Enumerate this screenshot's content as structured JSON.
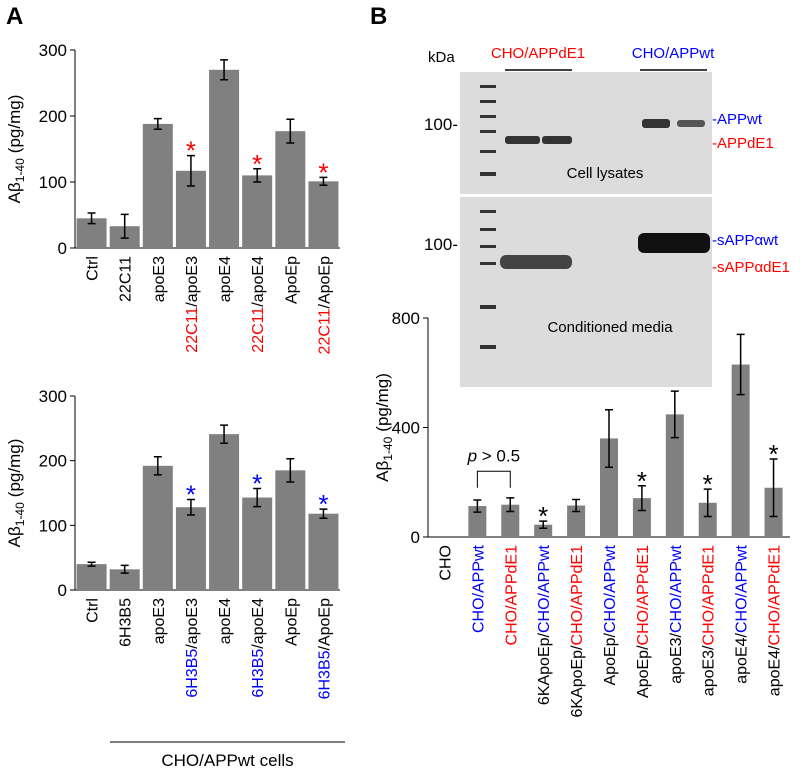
{
  "panel_labels": [
    "A",
    "B"
  ],
  "blot": {
    "unit": "kDa",
    "groups": [
      {
        "text": "CHO/APPdE1",
        "color": "#ff0000"
      },
      {
        "text": "CHO/APPwt",
        "color": "#0000ff"
      }
    ],
    "markers": [
      "100-",
      "100-"
    ],
    "panels": [
      "Cell lysates",
      "Conditioned media"
    ],
    "band_labels": [
      {
        "text": "-APPwt",
        "color": "#0000ff"
      },
      {
        "text": "-APPdE1",
        "color": "#ff0000"
      },
      {
        "text": "-sAPPαwt",
        "color": "#0000ff"
      },
      {
        "text": "-sAPPαdE1",
        "color": "#ff0000"
      }
    ]
  },
  "chart_data": [
    {
      "type": "bar",
      "y_label": {
        "main": "Aβ",
        "sub": "1-40",
        "unit": "(pg/mg)"
      },
      "color": "#808080",
      "categories": [
        [
          {
            "text": "Ctrl",
            "color": "#000000"
          }
        ],
        [
          {
            "text": "22C11",
            "color": "#000000"
          }
        ],
        [
          {
            "text": "apoE3",
            "color": "#000000"
          }
        ],
        [
          {
            "text": "22C11",
            "color": "#ff0000"
          },
          {
            "text": "/apoE3",
            "color": "#000000"
          }
        ],
        [
          {
            "text": "apoE4",
            "color": "#000000"
          }
        ],
        [
          {
            "text": "22C11",
            "color": "#ff0000"
          },
          {
            "text": "/apoE4",
            "color": "#000000"
          }
        ],
        [
          {
            "text": "ApoEp",
            "color": "#000000"
          }
        ],
        [
          {
            "text": "22C11",
            "color": "#ff0000"
          },
          {
            "text": "/ApoEp",
            "color": "#000000"
          }
        ]
      ],
      "values": [
        45,
        33,
        188,
        117,
        270,
        110,
        177,
        101
      ],
      "errors": [
        8,
        18,
        8,
        23,
        15,
        10,
        18,
        6
      ],
      "markers": [
        null,
        null,
        null,
        "*",
        null,
        "*",
        null,
        "*"
      ],
      "marker_color": "#ff0000",
      "ylim": [
        0,
        300
      ],
      "yticks": [
        0,
        100,
        200,
        300
      ]
    },
    {
      "type": "bar",
      "y_label": {
        "main": "Aβ",
        "sub": "1-40",
        "unit": "(pg/mg)"
      },
      "color": "#808080",
      "categories": [
        [
          {
            "text": "Ctrl",
            "color": "#000000"
          }
        ],
        [
          {
            "text": "6H3B5",
            "color": "#000000"
          }
        ],
        [
          {
            "text": "apoE3",
            "color": "#000000"
          }
        ],
        [
          {
            "text": "6H3B5",
            "color": "#0000ff"
          },
          {
            "text": "/apoE3",
            "color": "#000000"
          }
        ],
        [
          {
            "text": "apoE4",
            "color": "#000000"
          }
        ],
        [
          {
            "text": "6H3B5",
            "color": "#0000ff"
          },
          {
            "text": "/apoE4",
            "color": "#000000"
          }
        ],
        [
          {
            "text": "ApoEp",
            "color": "#000000"
          }
        ],
        [
          {
            "text": "6H3B5",
            "color": "#0000ff"
          },
          {
            "text": "/ApoEp",
            "color": "#000000"
          }
        ]
      ],
      "values": [
        40,
        32,
        192,
        128,
        241,
        143,
        185,
        118
      ],
      "errors": [
        3,
        6,
        14,
        12,
        14,
        14,
        18,
        7
      ],
      "markers": [
        null,
        null,
        null,
        "*",
        null,
        "*",
        null,
        "*"
      ],
      "marker_color": "#0000ff",
      "ylim": [
        0,
        300
      ],
      "yticks": [
        0,
        100,
        200,
        300
      ],
      "group_label": "CHO/APPwt cells"
    },
    {
      "type": "bar",
      "y_label": {
        "main": "Aβ",
        "sub": "1-40",
        "unit": "(pg/mg)"
      },
      "color": "#808080",
      "categories": [
        [
          {
            "text": "CHO",
            "color": "#000000"
          }
        ],
        [
          {
            "text": "CHO/APPwt",
            "color": "#0000ff"
          }
        ],
        [
          {
            "text": "CHO/APPdE1",
            "color": "#ff0000"
          }
        ],
        [
          {
            "text": "6KApoEp/",
            "color": "#000000"
          },
          {
            "text": "CHO/APPwt",
            "color": "#0000ff"
          }
        ],
        [
          {
            "text": "6KApoEp/",
            "color": "#000000"
          },
          {
            "text": "CHO/APPdE1",
            "color": "#ff0000"
          }
        ],
        [
          {
            "text": "ApoEp/",
            "color": "#000000"
          },
          {
            "text": "CHO/APPwt",
            "color": "#0000ff"
          }
        ],
        [
          {
            "text": "ApoEp/",
            "color": "#000000"
          },
          {
            "text": "CHO/APPdE1",
            "color": "#ff0000"
          }
        ],
        [
          {
            "text": "apoE3/",
            "color": "#000000"
          },
          {
            "text": "CHO/APPwt",
            "color": "#0000ff"
          }
        ],
        [
          {
            "text": "apoE3/",
            "color": "#000000"
          },
          {
            "text": "CHO/APPdE1",
            "color": "#ff0000"
          }
        ],
        [
          {
            "text": "apoE4/",
            "color": "#000000"
          },
          {
            "text": "CHO/APPwt",
            "color": "#0000ff"
          }
        ],
        [
          {
            "text": "apoE4/",
            "color": "#000000"
          },
          {
            "text": "CHO/APPdE1",
            "color": "#ff0000"
          }
        ]
      ],
      "values": [
        null,
        113,
        118,
        45,
        115,
        360,
        142,
        448,
        125,
        630,
        180
      ],
      "errors": [
        null,
        22,
        25,
        13,
        22,
        105,
        45,
        85,
        50,
        110,
        105
      ],
      "markers": [
        null,
        null,
        null,
        "*",
        null,
        null,
        "*",
        null,
        "*",
        null,
        "*"
      ],
      "marker_color": "#000000",
      "ylim": [
        0,
        800
      ],
      "yticks": [
        0,
        400,
        800
      ],
      "comparison_label": [
        "p",
        " > 0.5"
      ]
    }
  ]
}
